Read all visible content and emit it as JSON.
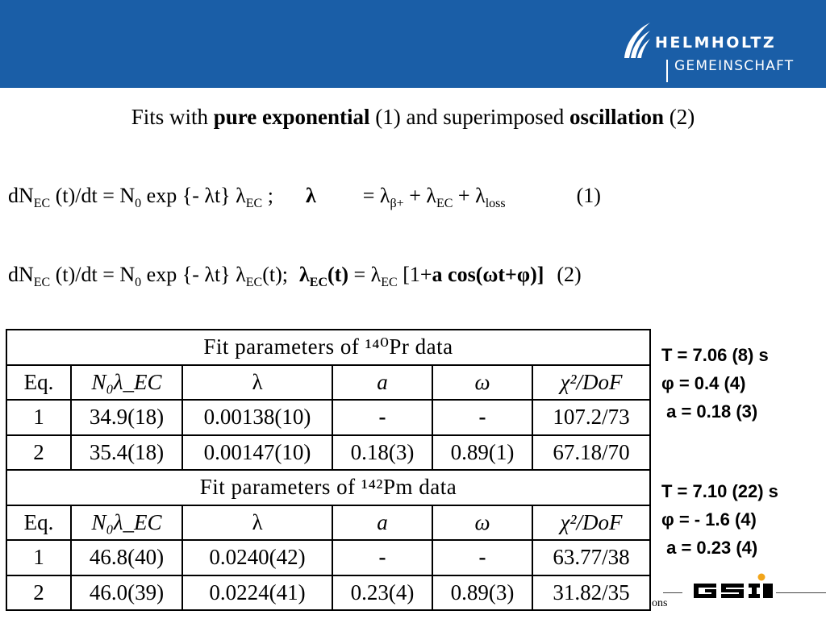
{
  "header": {
    "logo_line1": "HELMHOLTZ",
    "logo_line2": "GEMEINSCHAFT",
    "bar_color": "#1a5ea7"
  },
  "title": {
    "p1": "Fits with ",
    "p2": "pure exponential",
    "p3": " (1) and superimposed ",
    "p4": "oscillation",
    "p5": " (2)"
  },
  "equation1": {
    "t1": "dN",
    "s1": "EC",
    "t2": " (t)/dt = N",
    "s2": "0",
    "t3": " exp {- λt} λ",
    "s3": "EC",
    "t4": " ;",
    "t5": "λ",
    "t6": "= λ",
    "s6": "β+",
    "t7": " + λ",
    "s7": "EC",
    "t8": " + λ",
    "s8": "loss",
    "number": "(1)"
  },
  "equation2": {
    "t1": "dN",
    "s1": "EC",
    "t2": " (t)/dt = N",
    "s2": "0",
    "t3": " exp {- λt} λ",
    "s3": "EC",
    "t4": "(t);",
    "t5": "λ",
    "s5": "EC",
    "t6": "(t)",
    "t7": " = λ",
    "s7": "EC",
    "t8": " [1+",
    "t9": "a cos(ωt+φ)]",
    "number": "(2)"
  },
  "table": {
    "caption1": "Fit parameters of ¹⁴⁰Pr data",
    "caption2": "Fit parameters of ¹⁴²Pm data",
    "headers": [
      "Eq.",
      "N₀λ_EC",
      "λ",
      "a",
      "ω",
      "χ²/DoF"
    ],
    "pr_rows": [
      [
        "1",
        "34.9(18)",
        "0.00138(10)",
        "-",
        "-",
        "107.2/73"
      ],
      [
        "2",
        "35.4(18)",
        "0.00147(10)",
        "0.18(3)",
        "0.89(1)",
        "67.18/70"
      ]
    ],
    "pm_rows": [
      [
        "1",
        "46.8(40)",
        "0.0240(42)",
        "-",
        "-",
        "63.77/38"
      ],
      [
        "2",
        "46.0(39)",
        "0.0224(41)",
        "0.23(4)",
        "0.89(3)",
        "31.82/35"
      ]
    ]
  },
  "params_pr": [
    "T = 7.06 (8) s",
    "φ = 0.4 (4)",
    " a = 0.18 (3)"
  ],
  "params_pm": [
    "T = 7.10 (22) s",
    "φ = - 1.6 (4)",
    " a = 0.23 (4)"
  ],
  "footer": {
    "text": "ons"
  }
}
